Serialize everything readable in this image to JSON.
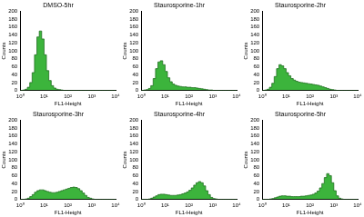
{
  "chart_data": [
    {
      "type": "histogram",
      "title": "DMSO-5hr",
      "x_label": "FL1-Height",
      "y_label": "Counts",
      "log": "x",
      "grid": false,
      "color": "#3cb43c",
      "xlim": [
        1,
        10000
      ],
      "ylim": [
        0,
        200
      ],
      "xticks": [
        {
          "value": 1,
          "label": "10⁰"
        },
        {
          "value": 10,
          "label": "10¹"
        },
        {
          "value": 100,
          "label": "10²"
        },
        {
          "value": 1000,
          "label": "10³"
        },
        {
          "value": 10000,
          "label": "10⁴"
        }
      ],
      "yticks": [
        0,
        20,
        40,
        60,
        80,
        100,
        120,
        140,
        160,
        180,
        200
      ],
      "bins": [
        1,
        1.259,
        1.585,
        1.995,
        2.512,
        3.162,
        3.981,
        5.012,
        6.31,
        7.943,
        10,
        12.59,
        15.85,
        19.95,
        25.12,
        31.62,
        39.81,
        50.12,
        63.1,
        79.43,
        100,
        125.9,
        158.5,
        199.5,
        251.2,
        316.2,
        398.1,
        501.2,
        631,
        794.3,
        1000,
        1259,
        1585,
        1995,
        2512,
        3162,
        3981,
        5012,
        6310,
        7943,
        10000
      ],
      "counts": [
        0,
        0,
        1,
        3,
        8,
        20,
        45,
        90,
        135,
        150,
        130,
        90,
        50,
        25,
        12,
        6,
        3,
        2,
        1,
        0,
        0,
        0,
        0,
        0,
        0,
        0,
        0,
        0,
        0,
        0,
        0,
        0,
        0,
        0,
        0,
        0,
        0,
        0,
        0,
        0
      ]
    },
    {
      "type": "histogram",
      "title": "Staurosporine-1hr",
      "x_label": "FL1-Height",
      "y_label": "Counts",
      "log": "x",
      "grid": false,
      "color": "#3cb43c",
      "xlim": [
        1,
        10000
      ],
      "ylim": [
        0,
        200
      ],
      "xticks": [
        {
          "value": 1,
          "label": "10⁰"
        },
        {
          "value": 10,
          "label": "10¹"
        },
        {
          "value": 100,
          "label": "10²"
        },
        {
          "value": 1000,
          "label": "10³"
        },
        {
          "value": 10000,
          "label": "10⁴"
        }
      ],
      "yticks": [
        0,
        20,
        40,
        60,
        80,
        100,
        120,
        140,
        160,
        180,
        200
      ],
      "bins": [
        1,
        1.259,
        1.585,
        1.995,
        2.512,
        3.162,
        3.981,
        5.012,
        6.31,
        7.943,
        10,
        12.59,
        15.85,
        19.95,
        25.12,
        31.62,
        39.81,
        50.12,
        63.1,
        79.43,
        100,
        125.9,
        158.5,
        199.5,
        251.2,
        316.2,
        398.1,
        501.2,
        631,
        794.3,
        1000,
        1259,
        1585,
        1995,
        2512,
        3162,
        3981,
        5012,
        6310,
        7943,
        10000
      ],
      "counts": [
        0,
        0,
        1,
        2,
        5,
        12,
        30,
        55,
        72,
        75,
        65,
        48,
        32,
        22,
        16,
        13,
        11,
        10,
        9,
        9,
        8,
        8,
        7,
        7,
        6,
        5,
        4,
        3,
        2,
        1,
        1,
        0,
        0,
        0,
        0,
        0,
        0,
        0,
        0,
        0
      ]
    },
    {
      "type": "histogram",
      "title": "Staurosporine-2hr",
      "x_label": "FL1-Height",
      "y_label": "Counts",
      "log": "x",
      "grid": false,
      "color": "#3cb43c",
      "xlim": [
        1,
        10000
      ],
      "ylim": [
        0,
        200
      ],
      "xticks": [
        {
          "value": 1,
          "label": "10⁰"
        },
        {
          "value": 10,
          "label": "10¹"
        },
        {
          "value": 100,
          "label": "10²"
        },
        {
          "value": 1000,
          "label": "10³"
        },
        {
          "value": 10000,
          "label": "10⁴"
        }
      ],
      "yticks": [
        0,
        20,
        40,
        60,
        80,
        100,
        120,
        140,
        160,
        180,
        200
      ],
      "bins": [
        1,
        1.259,
        1.585,
        1.995,
        2.512,
        3.162,
        3.981,
        5.012,
        6.31,
        7.943,
        10,
        12.59,
        15.85,
        19.95,
        25.12,
        31.62,
        39.81,
        50.12,
        63.1,
        79.43,
        100,
        125.9,
        158.5,
        199.5,
        251.2,
        316.2,
        398.1,
        501.2,
        631,
        794.3,
        1000,
        1259,
        1585,
        1995,
        2512,
        3162,
        3981,
        5012,
        6310,
        7943,
        10000
      ],
      "counts": [
        0,
        0,
        1,
        3,
        8,
        18,
        35,
        55,
        65,
        62,
        55,
        45,
        37,
        30,
        26,
        23,
        21,
        20,
        19,
        18,
        17,
        16,
        15,
        14,
        13,
        11,
        9,
        7,
        5,
        3,
        2,
        1,
        0,
        0,
        0,
        0,
        0,
        0,
        0,
        0
      ]
    },
    {
      "type": "histogram",
      "title": "Staurosporine-3hr",
      "x_label": "FL1-Height",
      "y_label": "Counts",
      "log": "x",
      "grid": false,
      "color": "#3cb43c",
      "xlim": [
        1,
        10000
      ],
      "ylim": [
        0,
        200
      ],
      "xticks": [
        {
          "value": 1,
          "label": "10⁰"
        },
        {
          "value": 10,
          "label": "10¹"
        },
        {
          "value": 100,
          "label": "10²"
        },
        {
          "value": 1000,
          "label": "10³"
        },
        {
          "value": 10000,
          "label": "10⁴"
        }
      ],
      "yticks": [
        0,
        20,
        40,
        60,
        80,
        100,
        120,
        140,
        160,
        180,
        200
      ],
      "bins": [
        1,
        1.259,
        1.585,
        1.995,
        2.512,
        3.162,
        3.981,
        5.012,
        6.31,
        7.943,
        10,
        12.59,
        15.85,
        19.95,
        25.12,
        31.62,
        39.81,
        50.12,
        63.1,
        79.43,
        100,
        125.9,
        158.5,
        199.5,
        251.2,
        316.2,
        398.1,
        501.2,
        631,
        794.3,
        1000,
        1259,
        1585,
        1995,
        2512,
        3162,
        3981,
        5012,
        6310,
        7943,
        10000
      ],
      "counts": [
        0,
        0,
        0,
        1,
        3,
        7,
        12,
        18,
        22,
        24,
        24,
        22,
        20,
        18,
        17,
        17,
        18,
        20,
        22,
        24,
        26,
        28,
        30,
        31,
        30,
        27,
        22,
        16,
        10,
        5,
        3,
        1,
        0,
        0,
        0,
        0,
        0,
        0,
        0,
        0
      ]
    },
    {
      "type": "histogram",
      "title": "Staurosporine-4hr",
      "x_label": "FL1-Height",
      "y_label": "Counts",
      "log": "x",
      "grid": false,
      "color": "#3cb43c",
      "xlim": [
        1,
        10000
      ],
      "ylim": [
        0,
        200
      ],
      "xticks": [
        {
          "value": 1,
          "label": "10⁰"
        },
        {
          "value": 10,
          "label": "10¹"
        },
        {
          "value": 100,
          "label": "10²"
        },
        {
          "value": 1000,
          "label": "10³"
        },
        {
          "value": 10000,
          "label": "10⁴"
        }
      ],
      "yticks": [
        0,
        20,
        40,
        60,
        80,
        100,
        120,
        140,
        160,
        180,
        200
      ],
      "bins": [
        1,
        1.259,
        1.585,
        1.995,
        2.512,
        3.162,
        3.981,
        5.012,
        6.31,
        7.943,
        10,
        12.59,
        15.85,
        19.95,
        25.12,
        31.62,
        39.81,
        50.12,
        63.1,
        79.43,
        100,
        125.9,
        158.5,
        199.5,
        251.2,
        316.2,
        398.1,
        501.2,
        631,
        794.3,
        1000,
        1259,
        1585,
        1995,
        2512,
        3162,
        3981,
        5012,
        6310,
        7943,
        10000
      ],
      "counts": [
        0,
        0,
        0,
        0,
        1,
        3,
        6,
        9,
        12,
        13,
        13,
        12,
        11,
        10,
        10,
        10,
        11,
        12,
        14,
        16,
        19,
        23,
        29,
        36,
        42,
        45,
        42,
        34,
        22,
        12,
        5,
        2,
        1,
        0,
        0,
        0,
        0,
        0,
        0,
        0
      ]
    },
    {
      "type": "histogram",
      "title": "Staurosporine-5hr",
      "x_label": "FL1-Height",
      "y_label": "Counts",
      "log": "x",
      "grid": false,
      "color": "#3cb43c",
      "xlim": [
        1,
        10000
      ],
      "ylim": [
        0,
        200
      ],
      "xticks": [
        {
          "value": 1,
          "label": "10⁰"
        },
        {
          "value": 10,
          "label": "10¹"
        },
        {
          "value": 100,
          "label": "10²"
        },
        {
          "value": 1000,
          "label": "10³"
        },
        {
          "value": 10000,
          "label": "10⁴"
        }
      ],
      "yticks": [
        0,
        20,
        40,
        60,
        80,
        100,
        120,
        140,
        160,
        180,
        200
      ],
      "bins": [
        1,
        1.259,
        1.585,
        1.995,
        2.512,
        3.162,
        3.981,
        5.012,
        6.31,
        7.943,
        10,
        12.59,
        15.85,
        19.95,
        25.12,
        31.62,
        39.81,
        50.12,
        63.1,
        79.43,
        100,
        125.9,
        158.5,
        199.5,
        251.2,
        316.2,
        398.1,
        501.2,
        631,
        794.3,
        1000,
        1259,
        1585,
        1995,
        2512,
        3162,
        3981,
        5012,
        6310,
        7943,
        10000
      ],
      "counts": [
        0,
        0,
        0,
        0,
        1,
        2,
        4,
        6,
        8,
        9,
        9,
        8,
        8,
        7,
        7,
        7,
        7,
        8,
        8,
        9,
        10,
        11,
        13,
        16,
        21,
        29,
        40,
        55,
        65,
        60,
        42,
        22,
        9,
        3,
        1,
        0,
        0,
        0,
        0,
        0
      ]
    }
  ]
}
